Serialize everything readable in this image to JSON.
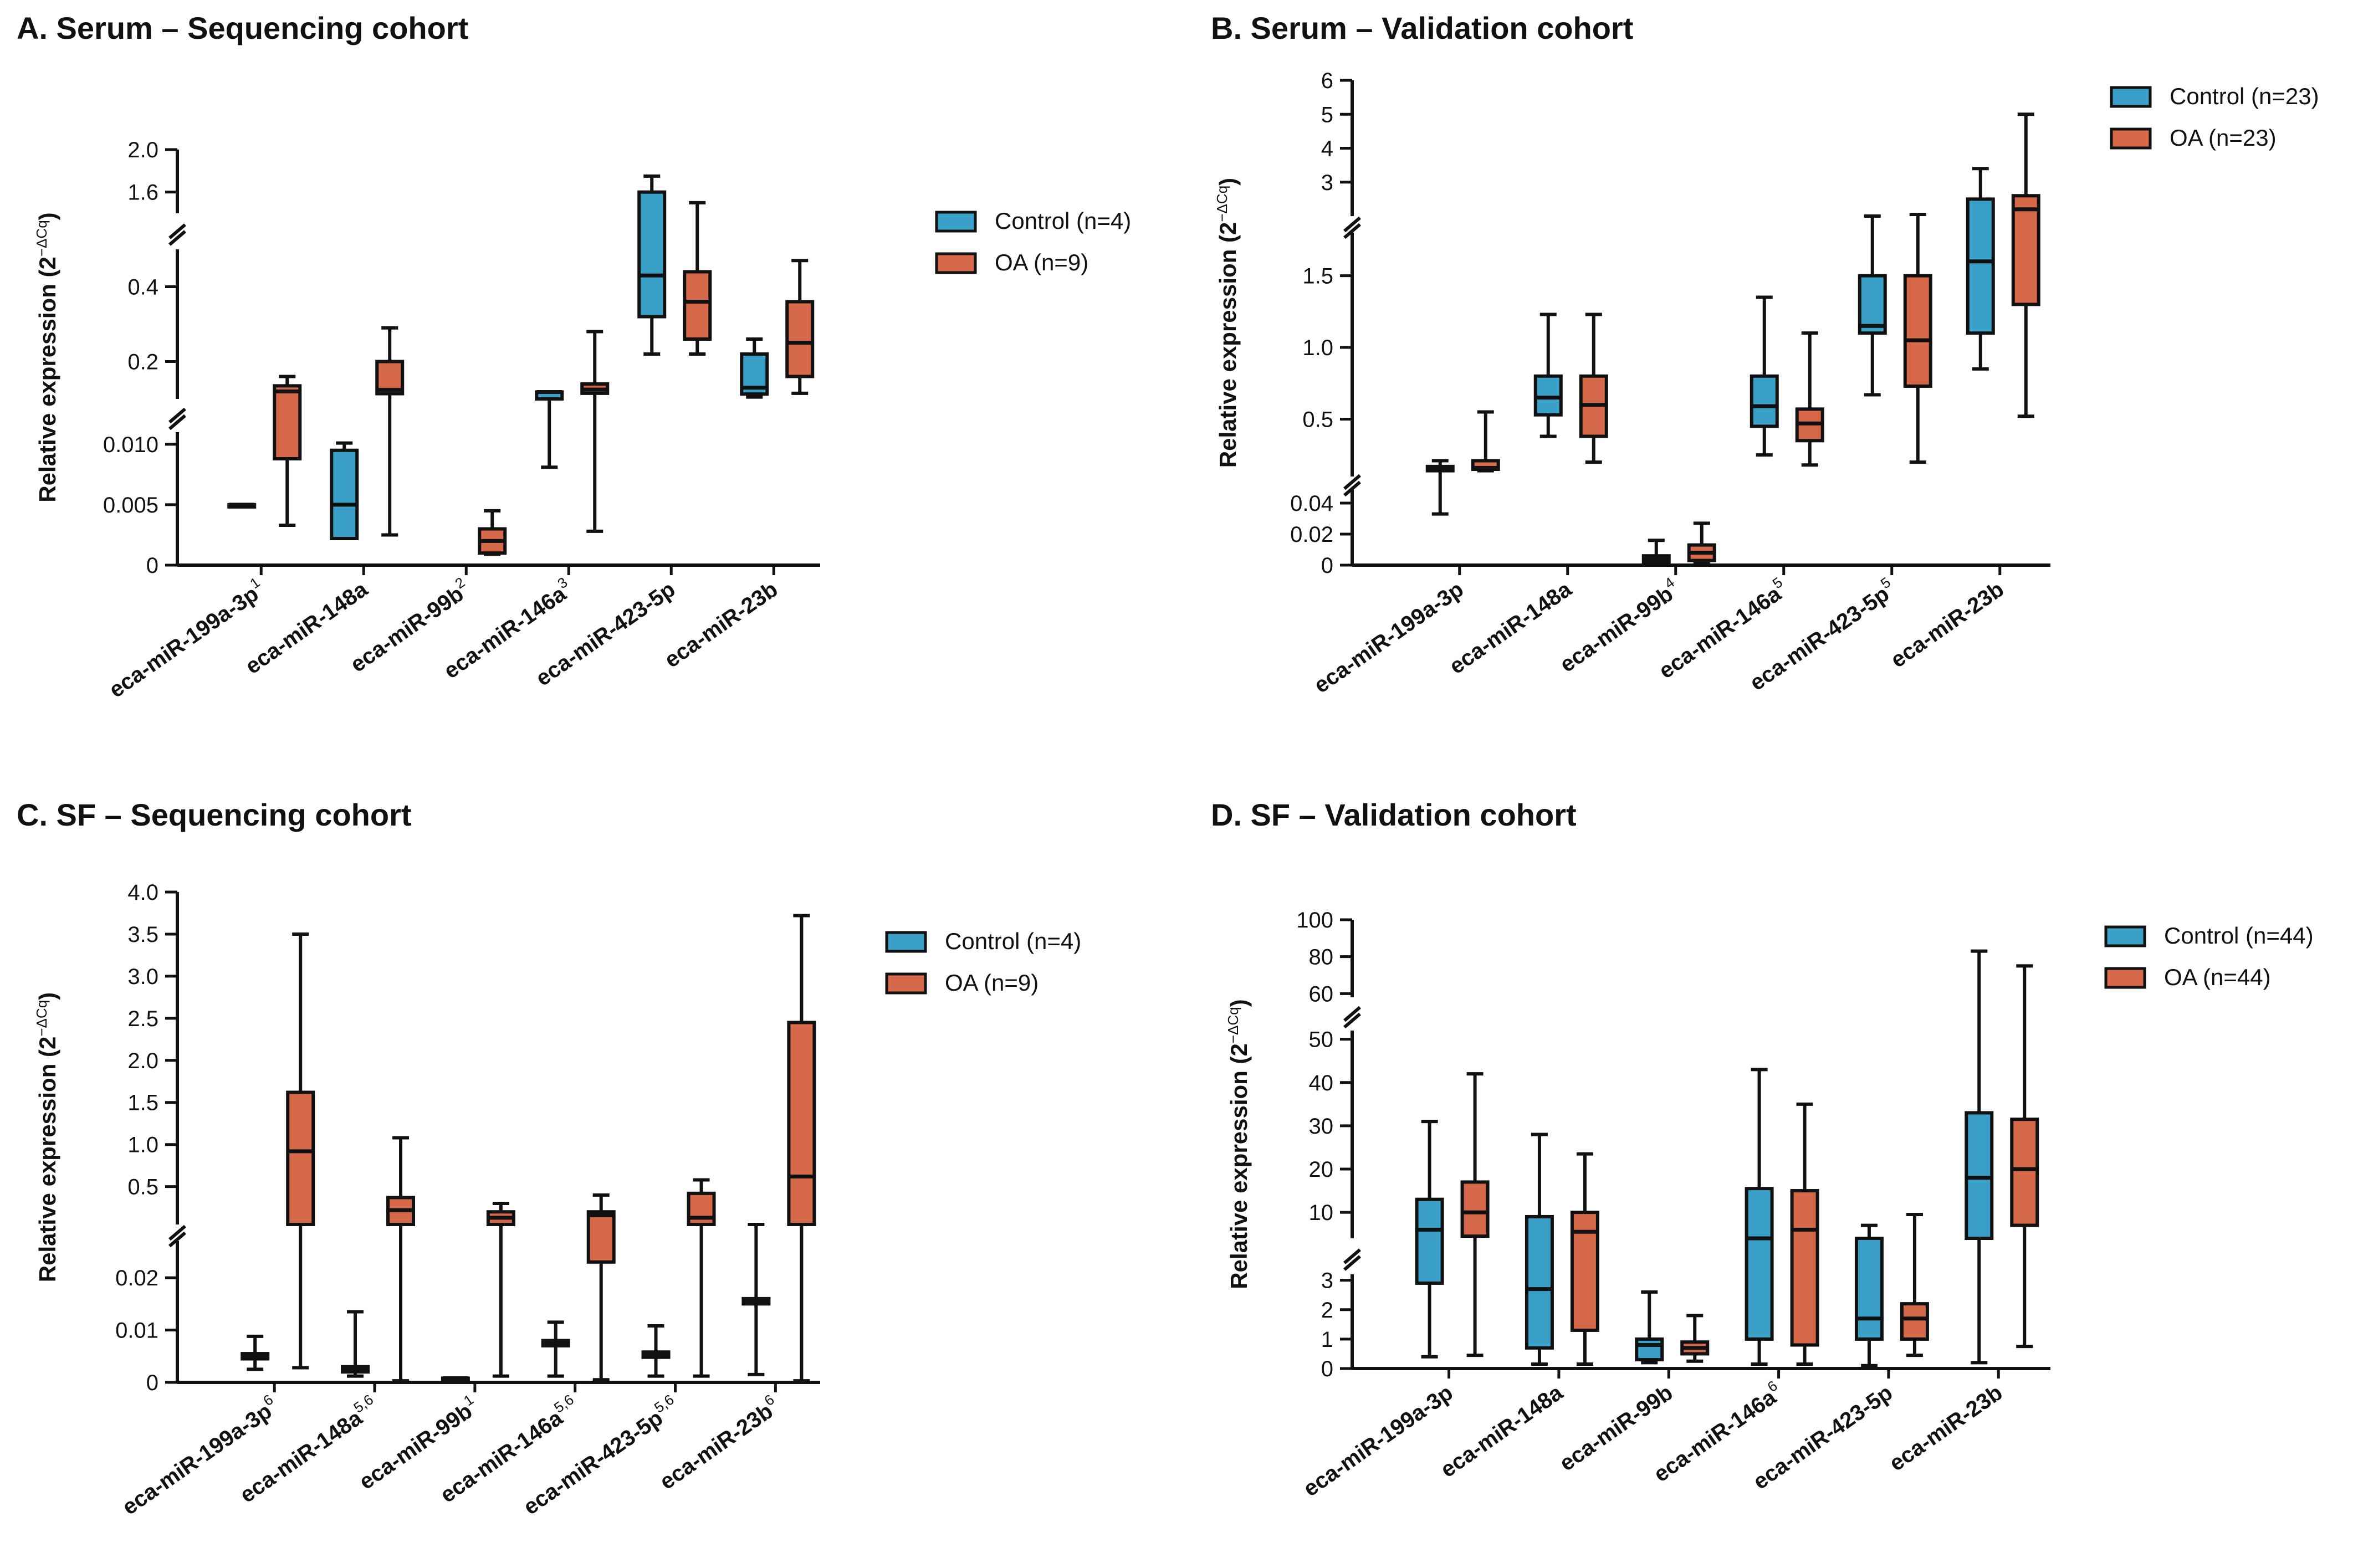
{
  "colors": {
    "control": "#3aa0c8",
    "oa": "#d5694a",
    "axis": "#111111"
  },
  "chart_data": [
    {
      "type": "box",
      "title": "A. Serum – Sequencing cohort",
      "ylabel": "Relative expression (2⁻ᐞCq)",
      "ylabel_main": "Relative expression (2",
      "ylabel_sup": "−ΔCq",
      "ylabel_end": ")",
      "categories": [
        "eca-miR-199a-3p",
        "eca-miR-148a",
        "eca-miR-99b",
        "eca-miR-146a",
        "eca-miR-423-5p",
        "eca-miR-23b"
      ],
      "category_sup": [
        "1",
        "",
        "2",
        "3",
        "",
        ""
      ],
      "legend": [
        "Control (n=4)",
        "OA (n=9)"
      ],
      "legend_position": "right",
      "y_segments": [
        {
          "range": [
            0,
            0.011
          ],
          "ticks": [
            "0",
            "0.005",
            "0.010"
          ],
          "tick_values": [
            0,
            0.005,
            0.01
          ]
        },
        {
          "range": [
            0.1,
            0.5
          ],
          "ticks": [
            "0.2",
            "0.4"
          ],
          "tick_values": [
            0.2,
            0.4
          ]
        },
        {
          "range": [
            1.4,
            2.0
          ],
          "ticks": [
            "1.6",
            "2.0"
          ],
          "tick_values": [
            1.6,
            2.0
          ]
        }
      ],
      "series": [
        {
          "name": "Control (n=4)",
          "boxes": [
            {
              "min": 0.005,
              "q1": 0.005,
              "median": 0.005,
              "q3": 0.005,
              "max": 0.005
            },
            {
              "min": 0.0022,
              "q1": 0.0022,
              "median": 0.005,
              "q3": 0.0095,
              "max": 0.0101
            },
            null,
            {
              "min": 0.0081,
              "q1": 0.0115,
              "median": 0.1185,
              "q3": 0.1185,
              "max": 0.119
            },
            {
              "min": 0.22,
              "q1": 0.32,
              "median": 0.43,
              "q3": 1.6,
              "max": 1.75
            },
            {
              "min": 0.105,
              "q1": 0.113,
              "median": 0.13,
              "q3": 0.22,
              "max": 0.26
            }
          ]
        },
        {
          "name": "OA (n=9)",
          "boxes": [
            {
              "min": 0.0033,
              "q1": 0.0088,
              "median": 0.12,
              "q3": 0.135,
              "max": 0.16
            },
            {
              "min": 0.0025,
              "q1": 0.114,
              "median": 0.124,
              "q3": 0.2,
              "max": 0.29
            },
            {
              "min": 0.0009,
              "q1": 0.001,
              "median": 0.002,
              "q3": 0.003,
              "max": 0.0045
            },
            {
              "min": 0.0028,
              "q1": 0.115,
              "median": 0.125,
              "q3": 0.14,
              "max": 0.28
            },
            {
              "min": 0.22,
              "q1": 0.26,
              "median": 0.36,
              "q3": 0.44,
              "max": 1.5
            },
            {
              "min": 0.115,
              "q1": 0.16,
              "median": 0.25,
              "q3": 0.36,
              "max": 0.47
            }
          ]
        }
      ]
    },
    {
      "type": "box",
      "title": "B. Serum – Validation cohort",
      "ylabel_main": "Relative expression (2",
      "ylabel_sup": "−ΔCq",
      "ylabel_end": ")",
      "categories": [
        "eca-miR-199a-3p",
        "eca-miR-148a",
        "eca-miR-99b",
        "eca-miR-146a",
        "eca-miR-423-5p",
        "eca-miR-23b"
      ],
      "category_sup": [
        "",
        "",
        "4",
        "5",
        "5",
        ""
      ],
      "legend": [
        "Control (n=23)",
        "OA (n=23)"
      ],
      "legend_position": "right",
      "y_segments": [
        {
          "range": [
            0,
            0.05
          ],
          "ticks": [
            "0",
            "0.02",
            "0.04"
          ],
          "tick_values": [
            0,
            0.02,
            0.04
          ]
        },
        {
          "range": [
            0.1,
            1.8
          ],
          "ticks": [
            "0.5",
            "1.0",
            "1.5"
          ],
          "tick_values": [
            0.5,
            1.0,
            1.5
          ]
        },
        {
          "range": [
            2.0,
            6.0
          ],
          "ticks": [
            "3",
            "4",
            "5",
            "6"
          ],
          "tick_values": [
            3,
            4,
            5,
            6
          ]
        }
      ],
      "series": [
        {
          "name": "Control (n=23)",
          "boxes": [
            {
              "min": 0.033,
              "q1": 0.14,
              "median": 0.16,
              "q3": 0.17,
              "max": 0.21
            },
            {
              "min": 0.38,
              "q1": 0.53,
              "median": 0.65,
              "q3": 0.8,
              "max": 1.23
            },
            {
              "min": 0.0,
              "q1": 0.002,
              "median": 0.004,
              "q3": 0.006,
              "max": 0.016
            },
            {
              "min": 0.25,
              "q1": 0.45,
              "median": 0.59,
              "q3": 0.8,
              "max": 1.35
            },
            {
              "min": 0.67,
              "q1": 1.1,
              "median": 1.15,
              "q3": 1.5,
              "max": 2.0
            },
            {
              "min": 0.85,
              "q1": 1.1,
              "median": 1.6,
              "q3": 2.5,
              "max": 3.4
            }
          ]
        },
        {
          "name": "OA (n=23)",
          "boxes": [
            {
              "min": 0.14,
              "q1": 0.15,
              "median": 0.16,
              "q3": 0.21,
              "max": 0.55
            },
            {
              "min": 0.2,
              "q1": 0.38,
              "median": 0.6,
              "q3": 0.8,
              "max": 1.23
            },
            {
              "min": 0.001,
              "q1": 0.003,
              "median": 0.008,
              "q3": 0.013,
              "max": 0.027
            },
            {
              "min": 0.18,
              "q1": 0.35,
              "median": 0.47,
              "q3": 0.57,
              "max": 1.1
            },
            {
              "min": 0.2,
              "q1": 0.73,
              "median": 1.05,
              "q3": 1.5,
              "max": 2.05
            },
            {
              "min": 0.52,
              "q1": 1.3,
              "median": 2.2,
              "q3": 2.6,
              "max": 5.0
            }
          ]
        }
      ]
    },
    {
      "type": "box",
      "title": "C. SF – Sequencing cohort",
      "ylabel_main": "Relative expression (2",
      "ylabel_sup": "−ΔCq",
      "ylabel_end": ")",
      "categories": [
        "eca-miR-199a-3p",
        "eca-miR-148a",
        "eca-miR-99b",
        "eca-miR-146a",
        "eca-miR-423-5p",
        "eca-miR-23b"
      ],
      "category_sup": [
        "6",
        "5,6",
        "1",
        "5,6",
        "5,6",
        "6"
      ],
      "legend": [
        "Control (n=4)",
        "OA (n=9)"
      ],
      "legend_position": "right",
      "y_segments": [
        {
          "range": [
            0,
            0.027
          ],
          "ticks": [
            "0",
            "0.01",
            "0.02"
          ],
          "tick_values": [
            0,
            0.01,
            0.02
          ]
        },
        {
          "range": [
            0.05,
            4.0
          ],
          "ticks": [
            "0.5",
            "1.0",
            "1.5",
            "2.0",
            "2.5",
            "3.0",
            "3.5",
            "4.0"
          ],
          "tick_values": [
            0.5,
            1.0,
            1.5,
            2.0,
            2.5,
            3.0,
            3.5,
            4.0
          ]
        }
      ],
      "series": [
        {
          "name": "Control (n=4)",
          "boxes": [
            {
              "min": 0.0025,
              "q1": 0.0045,
              "median": 0.005,
              "q3": 0.0055,
              "max": 0.0088
            },
            {
              "min": 0.0012,
              "q1": 0.002,
              "median": 0.0025,
              "q3": 0.003,
              "max": 0.0135
            },
            {
              "min": 0.0008,
              "q1": 0.0008,
              "median": 0.0008,
              "q3": 0.0008,
              "max": 0.0008
            },
            {
              "min": 0.0012,
              "q1": 0.007,
              "median": 0.0075,
              "q3": 0.008,
              "max": 0.0115
            },
            {
              "min": 0.0012,
              "q1": 0.0048,
              "median": 0.0052,
              "q3": 0.0058,
              "max": 0.0108
            },
            {
              "min": 0.0015,
              "q1": 0.015,
              "median": 0.0155,
              "q3": 0.016,
              "max": 0.05
            }
          ]
        },
        {
          "name": "OA (n=9)",
          "boxes": [
            {
              "min": 0.0028,
              "q1": 0.05,
              "median": 0.92,
              "q3": 1.62,
              "max": 3.5
            },
            {
              "min": 0.0003,
              "q1": 0.05,
              "median": 0.22,
              "q3": 0.37,
              "max": 1.08
            },
            {
              "min": 0.0012,
              "q1": 0.05,
              "median": 0.13,
              "q3": 0.2,
              "max": 0.3
            },
            {
              "min": 0.0005,
              "q1": 0.023,
              "median": 0.16,
              "q3": 0.2,
              "max": 0.4
            },
            {
              "min": 0.0012,
              "q1": 0.05,
              "median": 0.13,
              "q3": 0.42,
              "max": 0.58
            },
            {
              "min": 0.0003,
              "q1": 0.05,
              "median": 0.62,
              "q3": 2.45,
              "max": 3.72
            }
          ]
        }
      ]
    },
    {
      "type": "box",
      "title": "D. SF – Validation cohort",
      "ylabel_main": "Relative expression (2",
      "ylabel_sup": "−ΔCq",
      "ylabel_end": ")",
      "categories": [
        "eca-miR-199a-3p",
        "eca-miR-148a",
        "eca-miR-99b",
        "eca-miR-146a",
        "eca-miR-423-5p",
        "eca-miR-23b"
      ],
      "category_sup": [
        "",
        "",
        "",
        "6",
        "",
        ""
      ],
      "legend": [
        "Control (n=44)",
        "OA (n=44)"
      ],
      "legend_position": "right",
      "y_segments": [
        {
          "range": [
            0,
            3.2
          ],
          "ticks": [
            "0",
            "1",
            "2",
            "3"
          ],
          "tick_values": [
            0,
            1,
            2,
            3
          ]
        },
        {
          "range": [
            4,
            52
          ],
          "ticks": [
            "10",
            "20",
            "30",
            "40",
            "50"
          ],
          "tick_values": [
            10,
            20,
            30,
            40,
            50
          ]
        },
        {
          "range": [
            58,
            100
          ],
          "ticks": [
            "60",
            "80",
            "100"
          ],
          "tick_values": [
            60,
            80,
            100
          ]
        }
      ],
      "series": [
        {
          "name": "Control (n=44)",
          "boxes": [
            {
              "min": 0.4,
              "q1": 2.9,
              "median": 6,
              "q3": 13,
              "max": 31
            },
            {
              "min": 0.15,
              "q1": 0.7,
              "median": 2.7,
              "q3": 9,
              "max": 28
            },
            {
              "min": 0.2,
              "q1": 0.3,
              "median": 0.8,
              "q3": 1.0,
              "max": 2.6
            },
            {
              "min": 0.15,
              "q1": 1.0,
              "median": 4,
              "q3": 15.5,
              "max": 43
            },
            {
              "min": 0.1,
              "q1": 1.0,
              "median": 1.7,
              "q3": 4,
              "max": 7
            },
            {
              "min": 0.2,
              "q1": 4,
              "median": 18,
              "q3": 33,
              "max": 83
            }
          ]
        },
        {
          "name": "OA (n=44)",
          "boxes": [
            {
              "min": 0.45,
              "q1": 4.5,
              "median": 10,
              "q3": 17,
              "max": 42
            },
            {
              "min": 0.15,
              "q1": 1.3,
              "median": 5.5,
              "q3": 10,
              "max": 23.5
            },
            {
              "min": 0.25,
              "q1": 0.5,
              "median": 0.7,
              "q3": 0.9,
              "max": 1.8
            },
            {
              "min": 0.15,
              "q1": 0.8,
              "median": 6,
              "q3": 15,
              "max": 35
            },
            {
              "min": 0.45,
              "q1": 1.0,
              "median": 1.7,
              "q3": 2.2,
              "max": 9.5
            },
            {
              "min": 0.75,
              "q1": 7,
              "median": 20,
              "q3": 31.5,
              "max": 75
            }
          ]
        }
      ]
    }
  ]
}
